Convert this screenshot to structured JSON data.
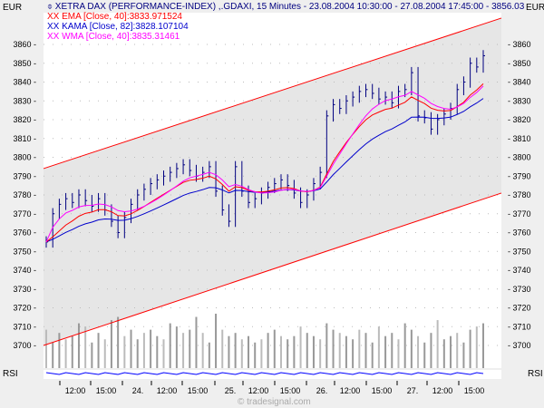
{
  "chart_data": {
    "type": "ohlc",
    "title": "XETRA DAX (PERFORMANCE-INDEX) ,.GDAXI, 15 Minutes - 23.08.2004 10:30:00 - 27.08.2004 17:45:00 - 3856.03",
    "currency_label": "EUR",
    "indicator_label": "RSI",
    "legend": [
      {
        "text": "EMA [Close, 40]:3833.971524",
        "color": "#ff0000"
      },
      {
        "text": "KAMA [Close, 82]:3828.107104",
        "color": "#0000cc"
      },
      {
        "text": "WMA [Close, 40]:3835.31461",
        "color": "#ff00ff"
      }
    ],
    "legend_marker": "XX",
    "ylim": [
      3690,
      3877
    ],
    "yticks": [
      3860,
      3850,
      3840,
      3830,
      3820,
      3810,
      3800,
      3790,
      3780,
      3770,
      3760,
      3750,
      3740,
      3730,
      3720,
      3710,
      3700
    ],
    "xticks": [
      "12:00",
      "15:00",
      "24.",
      "12:00",
      "15:00",
      "25.",
      "12:00",
      "15:00",
      "26.",
      "12:00",
      "15:00",
      "27.",
      "12:00",
      "15:00"
    ],
    "close": [
      3755,
      3770,
      3775,
      3778,
      3776,
      3780,
      3777,
      3774,
      3778,
      3772,
      3766,
      3760,
      3768,
      3775,
      3780,
      3783,
      3786,
      3788,
      3790,
      3792,
      3794,
      3796,
      3793,
      3790,
      3792,
      3795,
      3782,
      3772,
      3766,
      3795,
      3782,
      3776,
      3778,
      3781,
      3784,
      3786,
      3788,
      3785,
      3781,
      3776,
      3780,
      3786,
      3792,
      3822,
      3828,
      3826,
      3830,
      3832,
      3835,
      3836,
      3834,
      3831,
      3832,
      3829,
      3835,
      3836,
      3845,
      3822,
      3821,
      3815,
      3820,
      3823,
      3826,
      3836,
      3840,
      3850,
      3848,
      3854
    ],
    "volume": [
      60,
      40,
      55,
      45,
      50,
      70,
      65,
      40,
      55,
      45,
      75,
      80,
      50,
      60,
      45,
      55,
      60,
      50,
      45,
      70,
      65,
      55,
      60,
      80,
      55,
      40,
      85,
      60,
      50,
      55,
      45,
      50,
      40,
      45,
      55,
      60,
      50,
      45,
      50,
      65,
      55,
      50,
      45,
      70,
      60,
      55,
      50,
      45,
      60,
      55,
      40,
      65,
      50,
      55,
      45,
      70,
      60,
      50,
      40,
      55,
      75,
      45,
      50,
      55,
      40,
      60,
      65,
      70
    ],
    "channel": {
      "upper": [
        3794,
        3874
      ],
      "lower": [
        3700,
        3781
      ],
      "color": "#ff0000"
    },
    "watermark": "© tradesignal.com"
  }
}
